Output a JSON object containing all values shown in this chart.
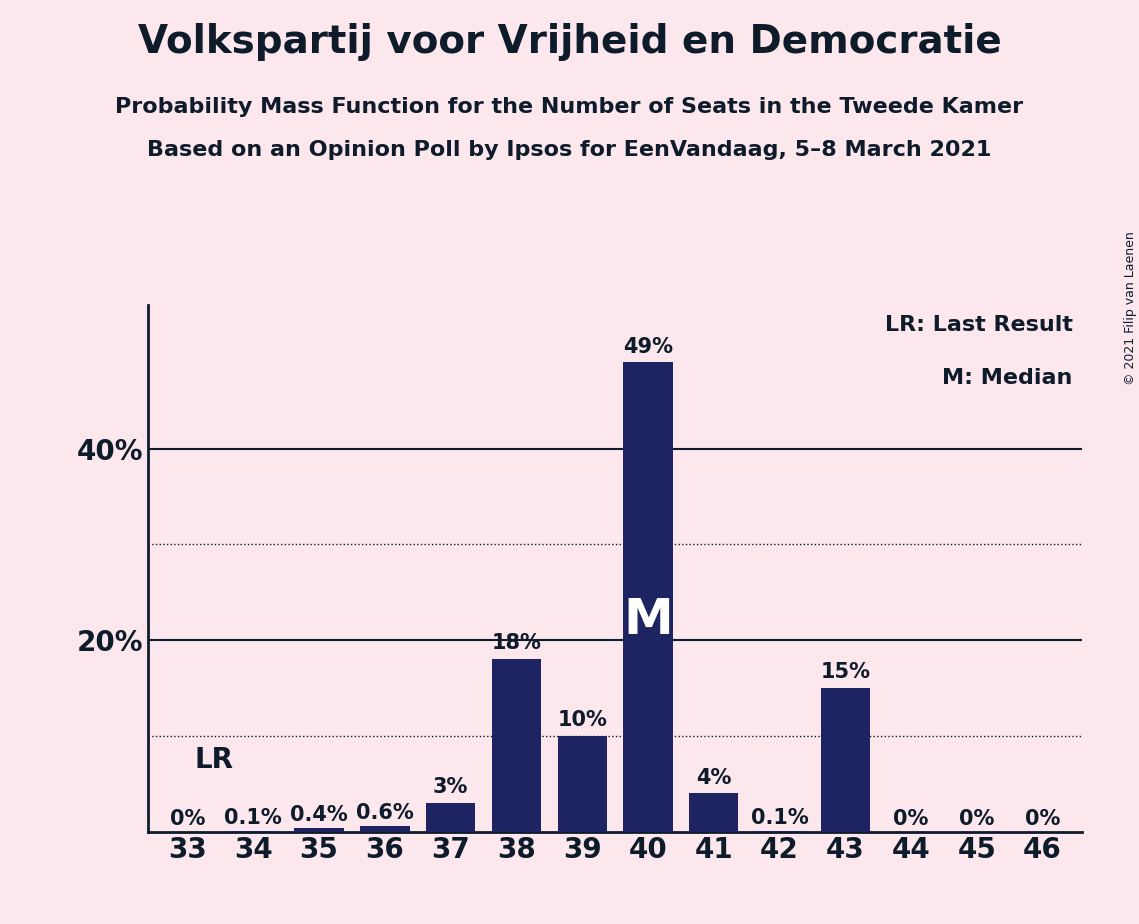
{
  "title": "Volkspartij voor Vrijheid en Democratie",
  "subtitle1": "Probability Mass Function for the Number of Seats in the Tweede Kamer",
  "subtitle2": "Based on an Opinion Poll by Ipsos for EenVandaag, 5–8 March 2021",
  "copyright": "© 2021 Filip van Laenen",
  "legend_lr": "LR: Last Result",
  "legend_m": "M: Median",
  "categories": [
    33,
    34,
    35,
    36,
    37,
    38,
    39,
    40,
    41,
    42,
    43,
    44,
    45,
    46
  ],
  "values": [
    0.0,
    0.1,
    0.4,
    0.6,
    3.0,
    18.0,
    10.0,
    49.0,
    4.0,
    0.1,
    15.0,
    0.0,
    0.0,
    0.0
  ],
  "labels": [
    "0%",
    "0.1%",
    "0.4%",
    "0.6%",
    "3%",
    "18%",
    "10%",
    "49%",
    "4%",
    "0.1%",
    "15%",
    "0%",
    "0%",
    "0%"
  ],
  "bar_color": "#1e2461",
  "background_color": "#fce8ec",
  "text_color": "#0d1b2a",
  "lr_seat": 33,
  "median_seat": 40,
  "ylim": [
    0,
    55
  ],
  "solid_yticks": [
    20,
    40
  ],
  "solid_ytick_labels": [
    "20%",
    "40%"
  ],
  "dotted_grid": [
    10,
    30
  ],
  "title_fontsize": 28,
  "subtitle_fontsize": 16,
  "bar_label_fontsize": 15,
  "axis_label_fontsize": 20,
  "legend_fontsize": 16,
  "lr_label_fontsize": 20,
  "m_label_fontsize": 36,
  "copyright_fontsize": 9
}
